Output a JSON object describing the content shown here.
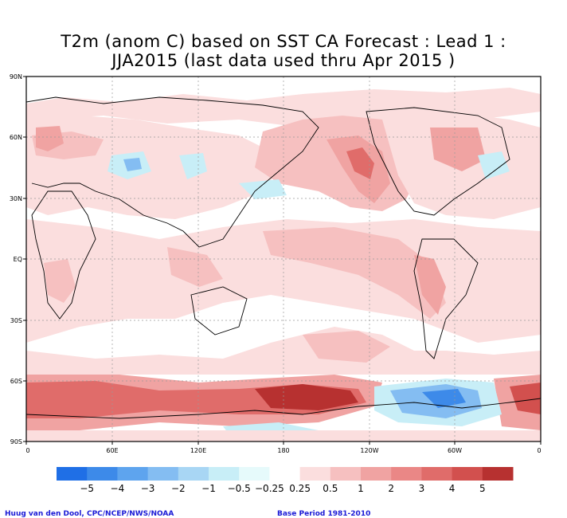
{
  "title": {
    "line1": "T2m (anom C) based on SST CA Forecast : Lead 1 :",
    "line2": "JJA2015 (last data used thru Apr 2015 )"
  },
  "map": {
    "lat_ticks": [
      "90N",
      "60N",
      "30N",
      "EQ",
      "30S",
      "60S",
      "90S"
    ],
    "lon_ticks": [
      "0",
      "60E",
      "120E",
      "180",
      "120W",
      "60W",
      "0"
    ],
    "gridlines": true
  },
  "colorbar": {
    "colors": [
      "#1f6fe6",
      "#3d8ae9",
      "#5ea4ee",
      "#84bdf2",
      "#a8d6f4",
      "#c8eef7",
      "#e6fafb",
      "#ffffff",
      "#fbdede",
      "#f6c0c0",
      "#f0a3a2",
      "#ea8786",
      "#e06c6a",
      "#d2504e",
      "#b73130"
    ],
    "labels": [
      "−5",
      "−4",
      "−3",
      "−2",
      "−1",
      "−0.5",
      "−0.25",
      "0.25",
      "0.5",
      "1",
      "2",
      "3",
      "4",
      "5"
    ]
  },
  "credits": {
    "left": "Huug van den Dool, CPC/NCEP/NWS/NOAA",
    "right": "Base Period 1981-2010"
  },
  "palette": {
    "warm1": "#fbdede",
    "warm2": "#f6c0c0",
    "warm3": "#f0a3a2",
    "warm4": "#e06c6a",
    "warm5": "#b73130",
    "cool1": "#c8eef7",
    "cool2": "#84bdf2",
    "cool3": "#3d8ae9"
  }
}
